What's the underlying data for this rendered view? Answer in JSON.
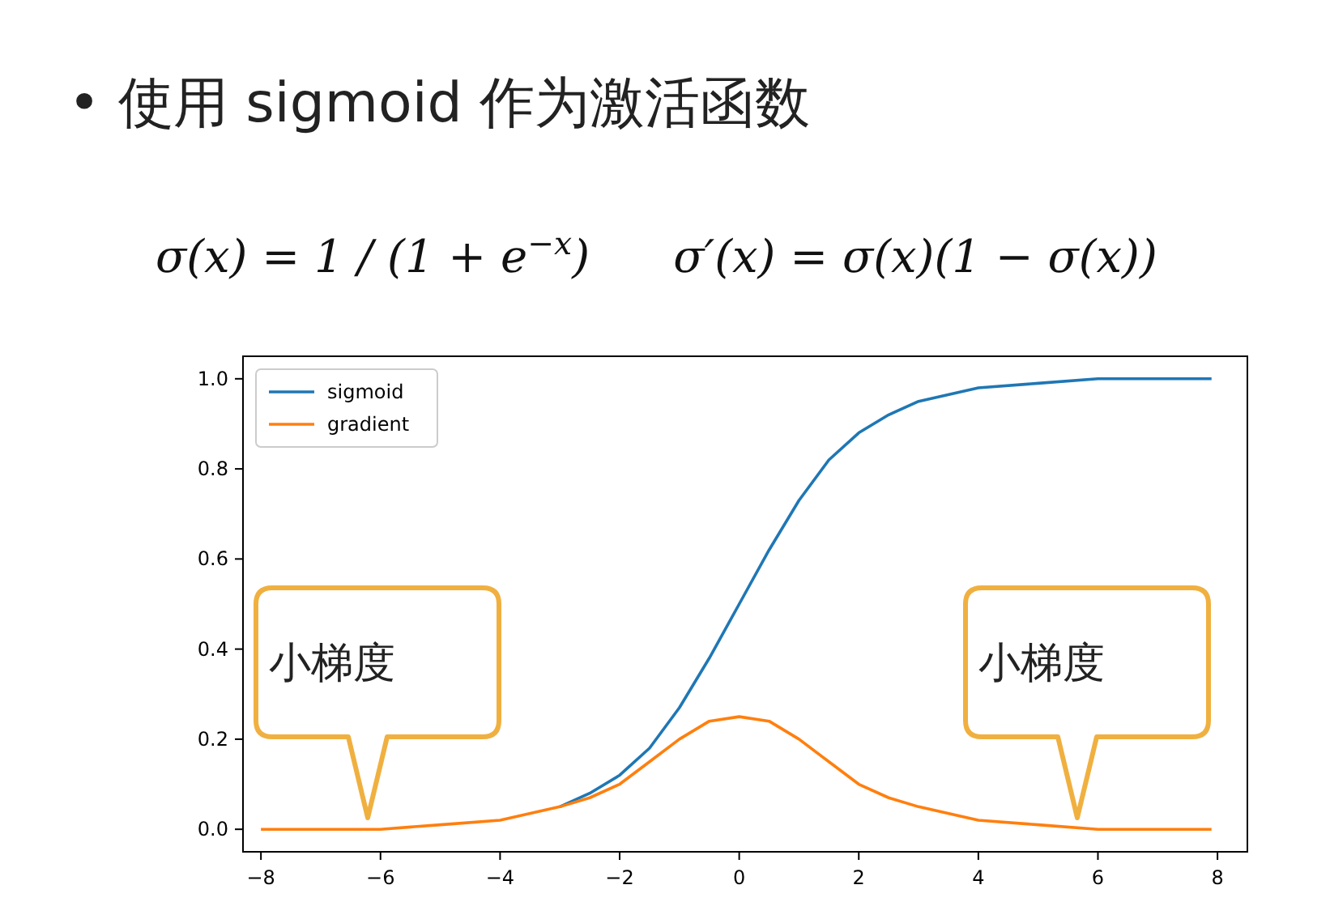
{
  "chart_data": {
    "type": "line",
    "title": "• 使用 sigmoid 作为激活函数",
    "annotations": [
      "σ(x) = 1 / (1 + e$^{−x}$)",
      "σ′(x) = σ(x)(1 − σ(x))",
      "小梯度",
      "小梯度"
    ],
    "x": [
      -8,
      -7,
      -6,
      -5,
      -4,
      -3,
      -2.5,
      -2,
      -1.5,
      -1,
      -0.5,
      0,
      0.5,
      1,
      1.5,
      2,
      2.5,
      3,
      4,
      5,
      6,
      7,
      7.9
    ],
    "series": [
      {
        "name": "sigmoid",
        "color": "#1f77b4",
        "values": [
          null,
          null,
          null,
          null,
          null,
          0.05,
          0.08,
          0.12,
          0.18,
          0.27,
          0.38,
          0.5,
          0.62,
          0.73,
          0.82,
          0.88,
          0.92,
          0.95,
          0.98,
          0.99,
          1.0,
          1.0,
          1.0
        ]
      },
      {
        "name": "gradient",
        "color": "#ff7f0e",
        "values": [
          0.0,
          0.0,
          0.0,
          0.01,
          0.02,
          0.05,
          0.07,
          0.1,
          0.15,
          0.2,
          0.24,
          0.25,
          0.24,
          0.2,
          0.15,
          0.1,
          0.07,
          0.05,
          0.02,
          0.01,
          0.0,
          0.0,
          0.0
        ]
      }
    ],
    "xlim": [
      -8.3,
      8.5
    ],
    "xticks": [
      {
        "value": -8,
        "label": "−8"
      },
      {
        "value": -6,
        "label": "−6"
      },
      {
        "value": -4,
        "label": "−4"
      },
      {
        "value": -2,
        "label": "−2"
      },
      0,
      2,
      4,
      6,
      8
    ],
    "ylim": [
      -0.05,
      1.05
    ],
    "yticks": [
      {
        "value": 0,
        "label": "0.0"
      },
      0.2,
      0.4,
      0.6,
      0.8,
      {
        "value": 1,
        "label": "1.0"
      }
    ],
    "legend": "top left",
    "grid": false
  }
}
